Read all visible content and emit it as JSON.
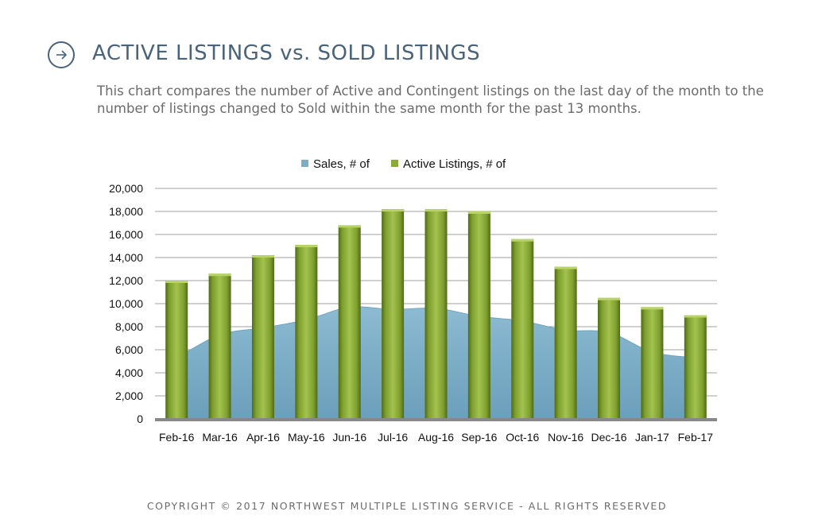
{
  "header": {
    "title": "ACTIVE LISTINGS vs. SOLD LISTINGS",
    "subtitle": "This chart compares the number of Active and Contingent listings on the last day of the month to the number of listings changed to Sold within the same month for the past 13 months.",
    "icon": "arrow-right-circle-icon"
  },
  "footer": {
    "copyright": "COPYRIGHT © 2017 NORTHWEST MULTIPLE LISTING SERVICE - ALL RIGHTS RESERVED"
  },
  "colors": {
    "title": "#4a6378",
    "sales": "#7aaec8",
    "active": "#8aaa3a",
    "active_dark": "#4f6b17",
    "axis": "#888888",
    "grid": "#a0a0a0"
  },
  "chart_data": {
    "type": "bar",
    "categories": [
      "Feb-16",
      "Mar-16",
      "Apr-16",
      "May-16",
      "Jun-16",
      "Jul-16",
      "Aug-16",
      "Sep-16",
      "Oct-16",
      "Nov-16",
      "Dec-16",
      "Jan-17",
      "Feb-17"
    ],
    "series": [
      {
        "name": "Sales, # of",
        "type": "area",
        "values": [
          5300,
          7300,
          7900,
          8600,
          9700,
          9500,
          9600,
          8900,
          8500,
          7700,
          7500,
          5800,
          5300
        ]
      },
      {
        "name": "Active Listings, # of",
        "type": "bar",
        "values": [
          12000,
          12600,
          14200,
          15100,
          16800,
          18200,
          18200,
          18000,
          15600,
          13200,
          10500,
          9700,
          9000
        ]
      }
    ],
    "yticks": [
      "20,000",
      "18,000",
      "16,000",
      "14,000",
      "12,000",
      "10,000",
      "8,000",
      "6,000",
      "4,000",
      "2,000",
      "0"
    ],
    "ylim": [
      0,
      20000
    ],
    "grid": true,
    "legend_position": "top-center"
  }
}
